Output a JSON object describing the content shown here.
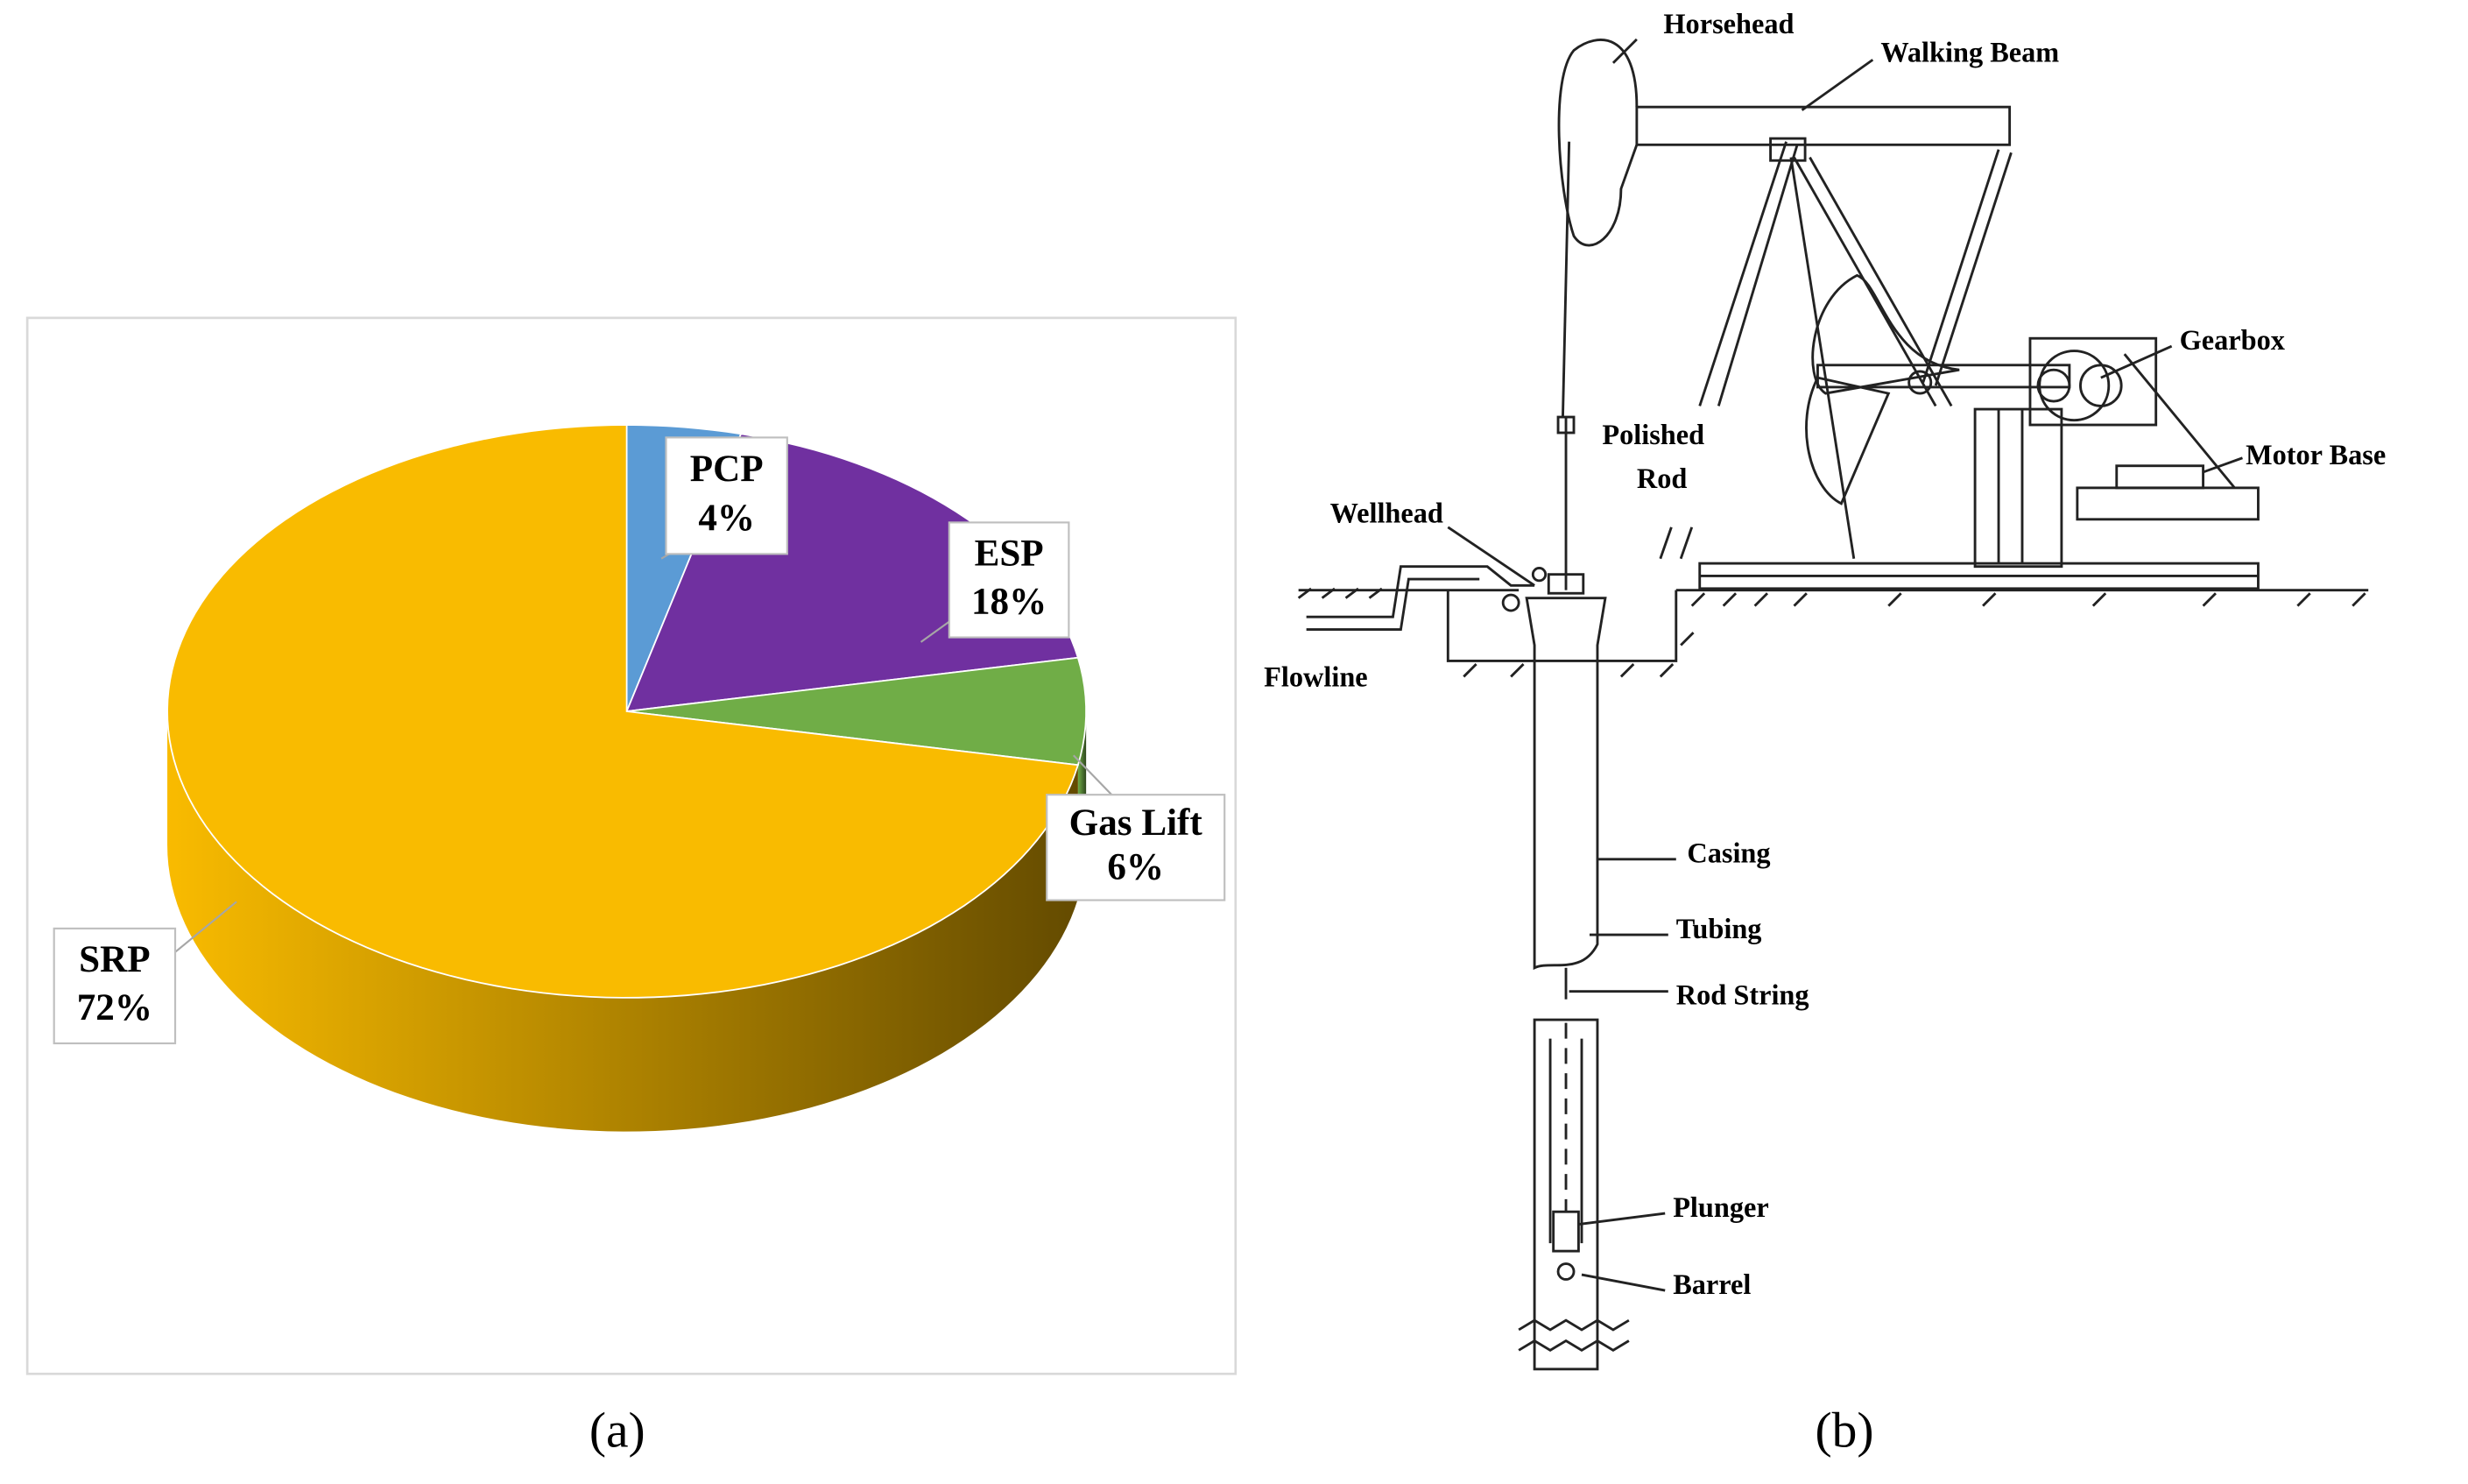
{
  "chart_data": {
    "type": "pie",
    "categories": [
      "PCP",
      "ESP",
      "Gas Lift",
      "SRP"
    ],
    "values": [
      4,
      18,
      6,
      72
    ],
    "value_labels": [
      "4%",
      "18%",
      "6%",
      "72%"
    ],
    "colors": [
      "#5b9bd5",
      "#7030a0",
      "#70ad47",
      "#f9bb00"
    ]
  },
  "diagram": {
    "labels": [
      "Horsehead",
      "Walking Beam",
      "Gearbox",
      "Motor Base",
      "Polished",
      "Rod",
      "Wellhead",
      "Flowline",
      "Casing",
      "Tubing",
      "Rod String",
      "Plunger",
      "Barrel"
    ]
  },
  "captions": [
    "(a)",
    "(b)"
  ]
}
